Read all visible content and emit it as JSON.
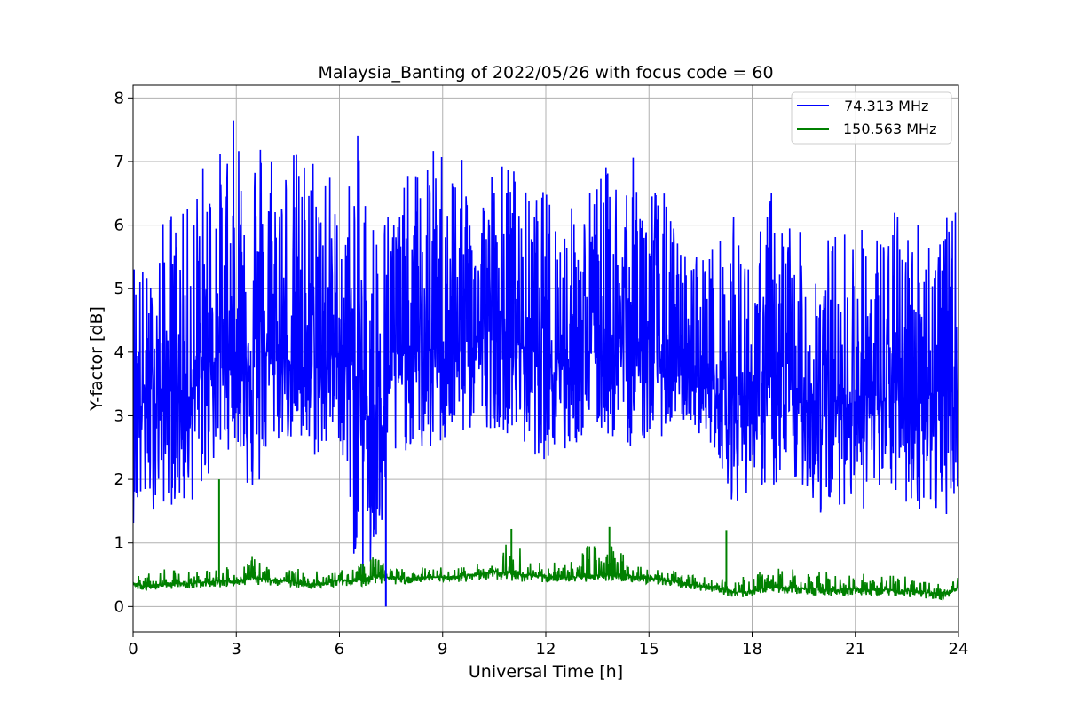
{
  "chart_data": {
    "type": "line",
    "title": "Malaysia_Banting of 2022/05/26 with focus code = 60",
    "xlabel": "Universal Time [h]",
    "ylabel": "Y-factor [dB]",
    "xlim": [
      0,
      24
    ],
    "ylim": [
      -0.4,
      8.2
    ],
    "xticks": [
      "0",
      "3",
      "6",
      "9",
      "12",
      "15",
      "18",
      "21",
      "24"
    ],
    "xtick_values": [
      0,
      3,
      6,
      9,
      12,
      15,
      18,
      21,
      24
    ],
    "yticks": [
      "0",
      "1",
      "2",
      "3",
      "4",
      "5",
      "6",
      "7",
      "8"
    ],
    "ytick_values": [
      0,
      1,
      2,
      3,
      4,
      5,
      6,
      7,
      8
    ],
    "grid": true,
    "legend_position": "top-right",
    "series": [
      {
        "name": " 74.313 MHz",
        "color": "#0000ff",
        "x": [
          0,
          0.5,
          1,
          1.5,
          2,
          2.5,
          3,
          3.5,
          4,
          4.5,
          5,
          5.5,
          6,
          6.5,
          7,
          7.5,
          8,
          8.5,
          9,
          9.5,
          10,
          10.5,
          11,
          11.5,
          12,
          12.5,
          13,
          13.5,
          14,
          14.5,
          15,
          15.5,
          16,
          16.5,
          17,
          17.5,
          18,
          18.5,
          19,
          19.5,
          20,
          20.5,
          21,
          21.5,
          22,
          22.5,
          23,
          23.5,
          24
        ],
        "low": [
          1.3,
          1.5,
          1.6,
          1.5,
          1.8,
          2.3,
          2.6,
          1.4,
          2.5,
          2.6,
          2.3,
          2.3,
          2.6,
          0.4,
          0.2,
          2.0,
          2.5,
          2.3,
          2.5,
          2.6,
          2.8,
          2.8,
          2.7,
          2.4,
          2.3,
          2.2,
          2.6,
          2.7,
          2.6,
          2.5,
          2.6,
          2.7,
          2.9,
          2.7,
          2.4,
          1.5,
          1.9,
          1.8,
          1.8,
          1.9,
          1.3,
          1.6,
          1.6,
          1.4,
          1.8,
          1.5,
          1.5,
          1.3,
          1.8
        ],
        "mid": [
          3.2,
          3.2,
          3.4,
          3.3,
          3.6,
          4.0,
          4.0,
          4.0,
          4.0,
          3.9,
          3.7,
          3.8,
          4.0,
          3.4,
          2.8,
          3.9,
          4.0,
          4.0,
          4.1,
          4.2,
          4.2,
          4.3,
          4.2,
          4.1,
          4.0,
          3.9,
          4.0,
          4.1,
          4.2,
          4.1,
          4.0,
          3.8,
          3.6,
          3.6,
          3.4,
          3.2,
          3.4,
          3.4,
          3.2,
          3.2,
          3.3,
          3.2,
          3.3,
          3.3,
          3.2,
          3.3,
          3.4,
          3.3,
          3.4
        ],
        "high": [
          5.8,
          5.2,
          6.4,
          6.2,
          7.1,
          7.2,
          7.8,
          7.7,
          7.6,
          7.3,
          7.2,
          7.6,
          6.1,
          7.5,
          6.4,
          6.5,
          6.8,
          7.1,
          7.4,
          7.1,
          6.6,
          7.1,
          7.1,
          6.5,
          6.6,
          6.3,
          6.4,
          6.9,
          7.0,
          7.1,
          6.9,
          6.5,
          5.6,
          5.7,
          5.8,
          6.2,
          5.3,
          6.7,
          6.3,
          5.8,
          5.8,
          6.0,
          6.1,
          5.9,
          6.3,
          6.2,
          6.3,
          6.0,
          6.4
        ]
      },
      {
        "name": "150.563 MHz",
        "color": "#008000",
        "x": [
          0,
          0.5,
          1,
          1.5,
          2,
          2.5,
          3,
          3.5,
          4,
          4.5,
          5,
          5.5,
          6,
          6.5,
          7,
          7.5,
          8,
          8.5,
          9,
          9.5,
          10,
          10.5,
          11,
          11.5,
          12,
          12.5,
          13,
          13.5,
          14,
          14.5,
          15,
          15.5,
          16,
          16.5,
          17,
          17.5,
          18,
          18.5,
          19,
          19.5,
          20,
          20.5,
          21,
          21.5,
          22,
          22.5,
          23,
          23.5,
          24
        ],
        "low": [
          0.27,
          0.25,
          0.28,
          0.27,
          0.3,
          0.3,
          0.32,
          0.35,
          0.33,
          0.32,
          0.28,
          0.27,
          0.33,
          0.3,
          0.35,
          0.35,
          0.34,
          0.36,
          0.37,
          0.38,
          0.4,
          0.42,
          0.4,
          0.38,
          0.37,
          0.36,
          0.38,
          0.4,
          0.4,
          0.38,
          0.35,
          0.33,
          0.28,
          0.25,
          0.22,
          0.12,
          0.15,
          0.2,
          0.2,
          0.18,
          0.17,
          0.16,
          0.17,
          0.15,
          0.16,
          0.15,
          0.12,
          0.08,
          0.18
        ],
        "mid": [
          0.35,
          0.33,
          0.36,
          0.36,
          0.38,
          0.4,
          0.4,
          0.45,
          0.42,
          0.4,
          0.35,
          0.35,
          0.42,
          0.4,
          0.48,
          0.45,
          0.44,
          0.46,
          0.46,
          0.48,
          0.5,
          0.55,
          0.52,
          0.5,
          0.48,
          0.46,
          0.48,
          0.5,
          0.5,
          0.48,
          0.45,
          0.42,
          0.36,
          0.32,
          0.3,
          0.22,
          0.24,
          0.3,
          0.3,
          0.28,
          0.27,
          0.26,
          0.28,
          0.26,
          0.26,
          0.25,
          0.23,
          0.2,
          0.3
        ],
        "high": [
          0.5,
          0.52,
          0.6,
          0.55,
          0.6,
          0.65,
          0.58,
          0.8,
          0.62,
          0.58,
          0.65,
          0.52,
          0.58,
          0.65,
          0.8,
          0.62,
          0.62,
          0.62,
          0.62,
          0.65,
          0.68,
          0.75,
          1.22,
          0.72,
          0.7,
          0.68,
          0.85,
          1.25,
          0.95,
          0.8,
          0.65,
          0.6,
          0.52,
          0.48,
          0.45,
          0.4,
          0.55,
          0.6,
          0.62,
          0.6,
          0.55,
          0.52,
          0.55,
          0.52,
          0.5,
          0.48,
          0.45,
          0.42,
          0.48
        ]
      }
    ],
    "notable_points": [
      {
        "series": "150.563 MHz",
        "x": 2.5,
        "y": 2.0
      },
      {
        "series": "150.563 MHz",
        "x": 11.0,
        "y": 1.22
      },
      {
        "series": "150.563 MHz",
        "x": 13.85,
        "y": 1.25
      },
      {
        "series": "150.563 MHz",
        "x": 17.25,
        "y": 1.2
      },
      {
        "series": " 74.313 MHz",
        "x": 7.35,
        "y": 0.0
      }
    ]
  }
}
